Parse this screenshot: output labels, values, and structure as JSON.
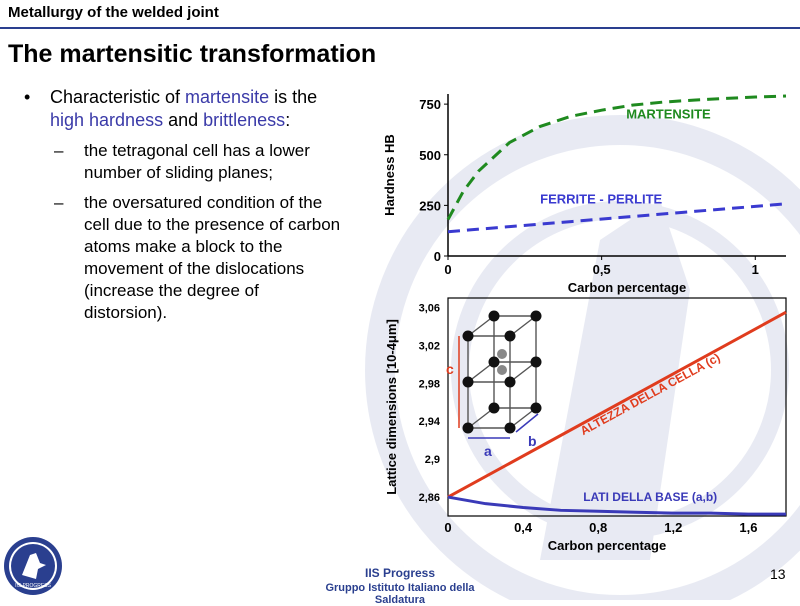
{
  "header": {
    "label": "Metallurgy  of the welded joint"
  },
  "title": "The martensitic transformation",
  "bullet": {
    "parts": [
      "Characteristic of ",
      "martensite",
      " is the ",
      "high hardness",
      " and ",
      "brittleness",
      ":"
    ]
  },
  "subpoints": [
    "the tetragonal cell has a lower number of sliding planes;",
    "the oversatured condition of the cell due to the presence of carbon atoms make a block to the movement of the dislocations (increase the degree of distorsion)."
  ],
  "footer": {
    "line1": "IIS Progress",
    "line2": "Gruppo Istituto Italiano della Saldatura"
  },
  "page_number": "13",
  "logo_text": "IIS PROGRESS",
  "colors": {
    "accent": "#2a3f8f",
    "martensite": "#1f8a1f",
    "ferrite": "#3a3ad0",
    "altezza": "#e03c1e",
    "lati": "#3a3ab8"
  },
  "chart_data": [
    {
      "type": "line",
      "ylabel": "Hardness HB",
      "xlabel": "Carbon percentage",
      "x_ticks": [
        "0",
        "0,5",
        "1"
      ],
      "y_ticks": [
        "0",
        "250",
        "500",
        "750"
      ],
      "xlim": [
        0,
        1.1
      ],
      "ylim": [
        0,
        800
      ],
      "series": [
        {
          "name": "MARTENSITE",
          "style": "dashed",
          "x": [
            0,
            0.05,
            0.1,
            0.2,
            0.3,
            0.4,
            0.5,
            0.6,
            0.7,
            0.8,
            0.9,
            1.0,
            1.1
          ],
          "y": [
            180,
            320,
            420,
            560,
            640,
            690,
            720,
            745,
            760,
            770,
            778,
            785,
            790
          ]
        },
        {
          "name": "FERRITE - PERLITE",
          "style": "dashed",
          "x": [
            0,
            0.2,
            0.4,
            0.6,
            0.8,
            1.0,
            1.1
          ],
          "y": [
            120,
            145,
            170,
            195,
            220,
            245,
            258
          ]
        }
      ]
    },
    {
      "type": "line",
      "ylabel": "Lattice dimensions [10-4μm]",
      "xlabel": "Carbon percentage",
      "x_ticks": [
        "0",
        "0,4",
        "0,8",
        "1,2",
        "1,6"
      ],
      "y_ticks": [
        "2,86",
        "2,9",
        "2,94",
        "2,98",
        "3,02",
        "3,06"
      ],
      "xlim": [
        0,
        1.8
      ],
      "ylim": [
        2.84,
        3.07
      ],
      "series": [
        {
          "name": "ALTEZZA DELLA CELLA (c)",
          "style": "solid",
          "x": [
            0,
            1.8
          ],
          "y": [
            2.86,
            3.055
          ]
        },
        {
          "name": "LATI DELLA BASE (a,b)",
          "style": "solid",
          "x": [
            0,
            0.2,
            0.4,
            0.6,
            0.8,
            1.0,
            1.2,
            1.4,
            1.6,
            1.8
          ],
          "y": [
            2.86,
            2.853,
            2.849,
            2.846,
            2.845,
            2.844,
            2.843,
            2.843,
            2.842,
            2.842
          ]
        }
      ],
      "cell_labels": [
        "c",
        "a",
        "b"
      ]
    }
  ]
}
